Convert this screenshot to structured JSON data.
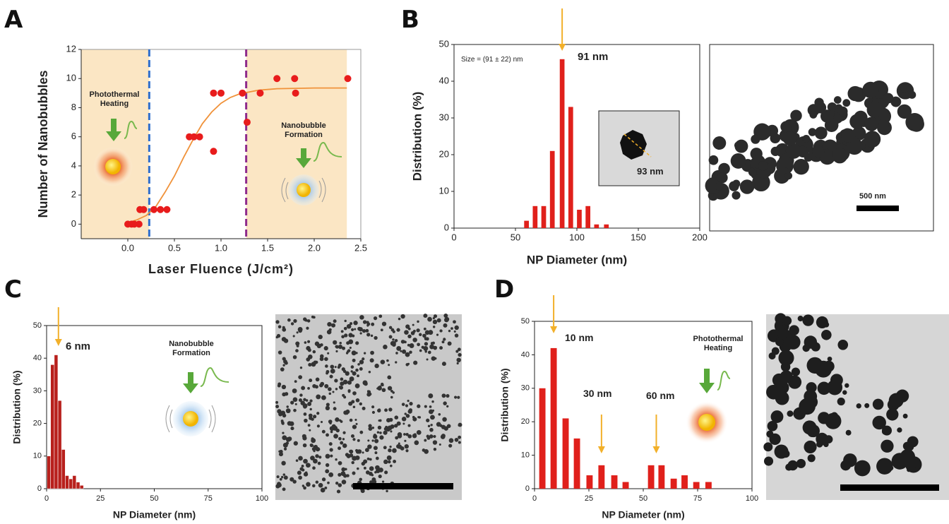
{
  "chart_data": [
    {
      "type": "scatter",
      "panel": "A",
      "xlabel": "Laser Fluence (J/cm²)",
      "ylabel": "Number of Nanobubbles",
      "xlim": [
        -0.5,
        2.5
      ],
      "xticks": [
        {
          "value": 0,
          "label": "0.0"
        },
        {
          "value": 0.5,
          "label": "0.5"
        },
        {
          "value": 1,
          "label": "1.0"
        },
        {
          "value": 1.5,
          "label": "1.5"
        },
        {
          "value": 2,
          "label": "2.0"
        },
        {
          "value": 2.5,
          "label": "2.5"
        }
      ],
      "ylim": [
        -1,
        12
      ],
      "yticks": [
        0,
        2,
        4,
        6,
        8,
        10,
        12
      ],
      "shaded_regions": [
        [
          -0.5,
          0.23
        ],
        [
          1.27,
          2.35
        ]
      ],
      "shade_color": "#fbe6c4",
      "thresholds": [
        {
          "x": 0.23,
          "color": "#2f6fce"
        },
        {
          "x": 1.27,
          "color": "#8e2a8c"
        }
      ],
      "series": [
        {
          "type": "scatter",
          "color": "#e81c1c",
          "x": [
            0,
            0.04,
            0.07,
            0.12,
            0.13,
            0.17,
            0.28,
            0.35,
            0.42,
            0.66,
            0.71,
            0.77,
            0.92,
            0.92,
            1.0,
            1.23,
            1.42,
            1.28,
            1.6,
            1.79,
            2.36,
            1.8
          ],
          "values": [
            0,
            0,
            0,
            0,
            1,
            1,
            1,
            1,
            1,
            6,
            6,
            6,
            5,
            9,
            9,
            9,
            9,
            7,
            10,
            10,
            10,
            9
          ]
        },
        {
          "type": "line",
          "color": "#f0923a",
          "x": [
            0,
            0.1,
            0.2,
            0.3,
            0.4,
            0.5,
            0.6,
            0.7,
            0.8,
            0.9,
            1.0,
            1.1,
            1.2,
            1.4,
            1.6,
            2.0,
            2.35
          ],
          "values": [
            0.1,
            0.3,
            0.6,
            1.2,
            2.2,
            3.3,
            4.6,
            5.8,
            6.9,
            7.7,
            8.3,
            8.7,
            8.95,
            9.2,
            9.3,
            9.35,
            9.35
          ]
        }
      ],
      "annotations": [
        "Photothermal Heating",
        "Nanobubble Formation"
      ]
    },
    {
      "type": "bar",
      "panel": "B",
      "xlabel": "NP Diameter (nm)",
      "ylabel": "Distribution (%)",
      "xlim": [
        0,
        200
      ],
      "xticks": [
        0,
        50,
        100,
        150,
        200
      ],
      "ylim": [
        0,
        50
      ],
      "yticks": [
        0,
        10,
        20,
        30,
        40,
        50
      ],
      "color": "#e0201b",
      "x": [
        59,
        66,
        73,
        80,
        88,
        95,
        102,
        109,
        116,
        124
      ],
      "values": [
        2,
        6,
        6,
        21,
        46,
        33,
        5,
        6,
        1,
        1
      ],
      "arrows": [
        88
      ],
      "arrow_color": "#f2b02a",
      "annotations": [
        "Size = (91 ± 22) nm",
        "91 nm",
        "93 nm",
        "500 nm"
      ]
    },
    {
      "type": "bar",
      "panel": "C",
      "xlabel": "NP Diameter (nm)",
      "ylabel": "Distribution (%)",
      "xlim": [
        0,
        100
      ],
      "xticks": [
        0,
        25,
        50,
        75,
        100
      ],
      "ylim": [
        0,
        50
      ],
      "yticks": [
        0,
        10,
        20,
        30,
        40,
        50
      ],
      "color": "#b8201c",
      "x": [
        1,
        2.7,
        4.4,
        6.1,
        7.8,
        9.5,
        11.2,
        12.9,
        14.6,
        16.3
      ],
      "values": [
        10,
        38,
        41,
        27,
        12,
        4,
        3,
        4,
        2,
        1
      ],
      "arrows": [
        5.5
      ],
      "arrow_color": "#f2b02a",
      "annotations": [
        "6 nm",
        "Nanobubble Formation"
      ]
    },
    {
      "type": "bar",
      "panel": "D",
      "xlabel": "NP Diameter (nm)",
      "ylabel": "Distribution (%)",
      "xlim": [
        0,
        100
      ],
      "xticks": [
        0,
        25,
        50,
        75,
        100
      ],
      "ylim": [
        0,
        50
      ],
      "yticks": [
        0,
        10,
        20,
        30,
        40,
        50
      ],
      "color": "#e0201b",
      "x": [
        3.6,
        8.8,
        14.3,
        19.5,
        25.3,
        30.8,
        36.7,
        41.9,
        53.6,
        58.4,
        64,
        69,
        74.4,
        80
      ],
      "values": [
        30,
        42,
        21,
        15,
        4,
        7,
        4,
        2,
        7,
        7,
        3,
        4,
        2,
        2
      ],
      "arrows": [
        8.8,
        30.8,
        56
      ],
      "arrow_color": "#f2b02a",
      "annotations": [
        "10 nm",
        "30 nm",
        "60 nm",
        "Photothermal Heating"
      ]
    }
  ]
}
